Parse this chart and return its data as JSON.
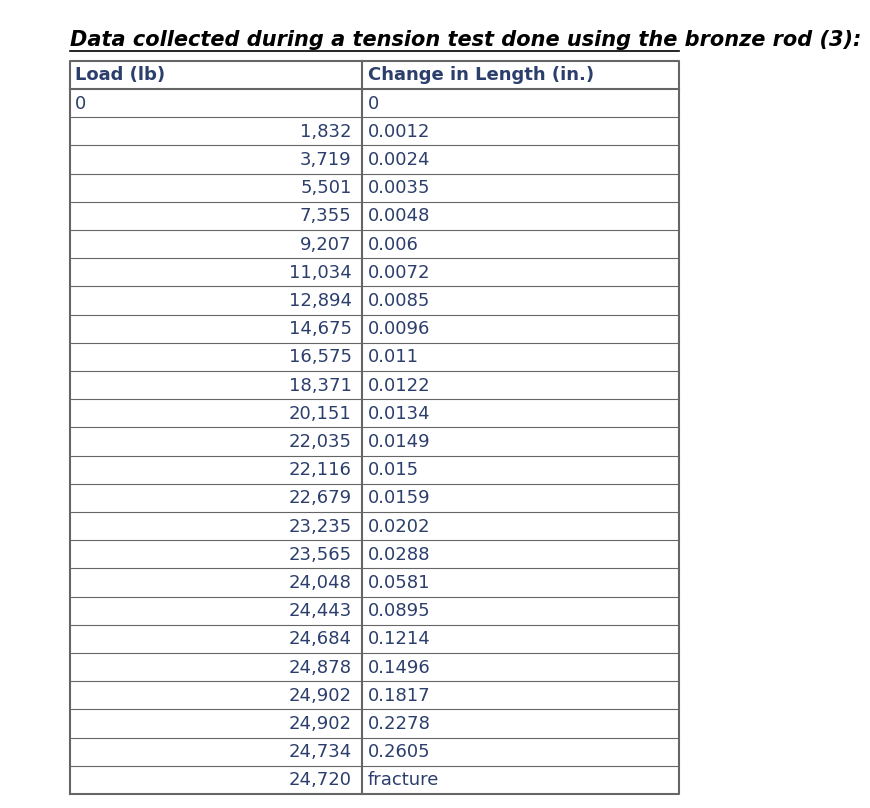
{
  "title": "Data collected during a tension test done using the bronze rod (3):",
  "col1_header": "Load (lb)",
  "col2_header": "Change in Length (in.)",
  "rows": [
    [
      "0",
      "0"
    ],
    [
      "1,832",
      "0.0012"
    ],
    [
      "3,719",
      "0.0024"
    ],
    [
      "5,501",
      "0.0035"
    ],
    [
      "7,355",
      "0.0048"
    ],
    [
      "9,207",
      "0.006"
    ],
    [
      "11,034",
      "0.0072"
    ],
    [
      "12,894",
      "0.0085"
    ],
    [
      "14,675",
      "0.0096"
    ],
    [
      "16,575",
      "0.011"
    ],
    [
      "18,371",
      "0.0122"
    ],
    [
      "20,151",
      "0.0134"
    ],
    [
      "22,035",
      "0.0149"
    ],
    [
      "22,116",
      "0.015"
    ],
    [
      "22,679",
      "0.0159"
    ],
    [
      "23,235",
      "0.0202"
    ],
    [
      "23,565",
      "0.0288"
    ],
    [
      "24,048",
      "0.0581"
    ],
    [
      "24,443",
      "0.0895"
    ],
    [
      "24,684",
      "0.1214"
    ],
    [
      "24,878",
      "0.1496"
    ],
    [
      "24,902",
      "0.1817"
    ],
    [
      "24,902",
      "0.2278"
    ],
    [
      "24,734",
      "0.2605"
    ],
    [
      "24,720",
      "fracture"
    ]
  ],
  "bg_color": "#ffffff",
  "border_color": "#666666",
  "text_color": "#2c3e6b",
  "title_color": "#000000",
  "font_size": 13,
  "header_font_size": 13,
  "title_font_size": 15
}
